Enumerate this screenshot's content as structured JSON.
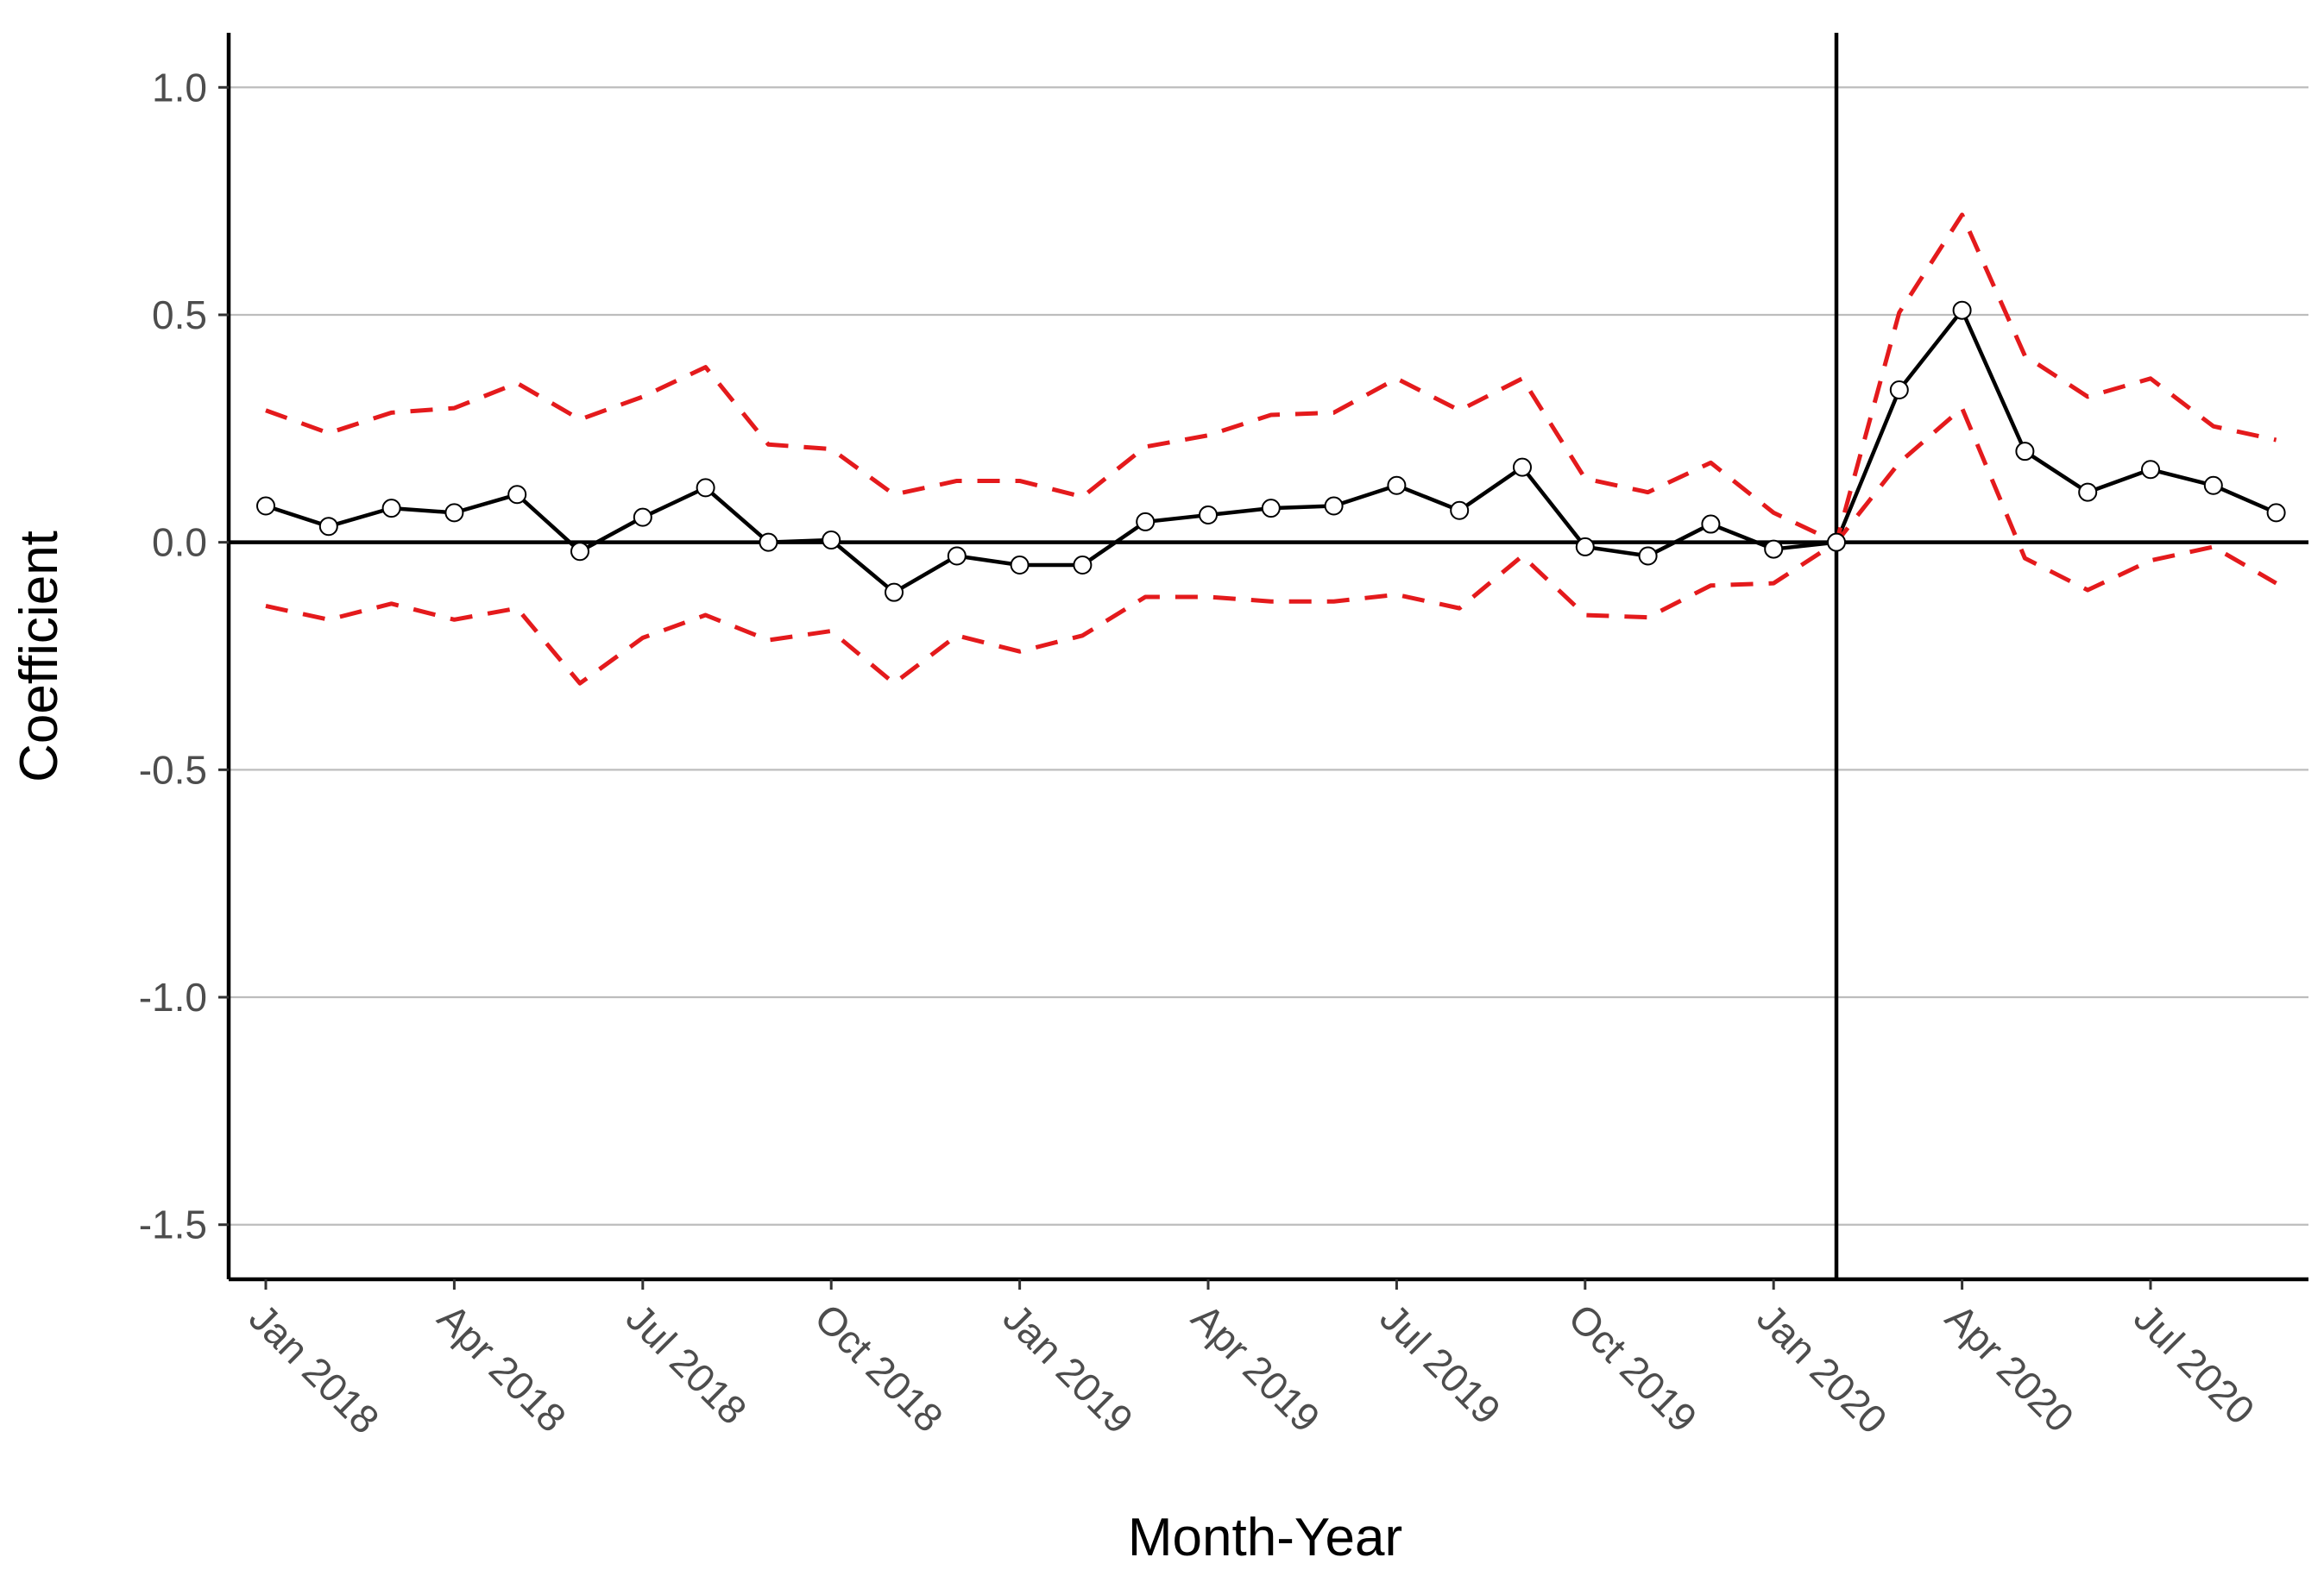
{
  "chart_data": {
    "type": "line",
    "title": "",
    "xlabel": "Month-Year",
    "ylabel": "Coefficient",
    "x": [
      "2018-01",
      "2018-02",
      "2018-03",
      "2018-04",
      "2018-05",
      "2018-06",
      "2018-07",
      "2018-08",
      "2018-09",
      "2018-10",
      "2018-11",
      "2018-12",
      "2019-01",
      "2019-02",
      "2019-03",
      "2019-04",
      "2019-05",
      "2019-06",
      "2019-07",
      "2019-08",
      "2019-09",
      "2019-10",
      "2019-11",
      "2019-12",
      "2020-01",
      "2020-02",
      "2020-03",
      "2020-04",
      "2020-05",
      "2020-06",
      "2020-07",
      "2020-08",
      "2020-09"
    ],
    "series": [
      {
        "role": "estimate",
        "color": "#000000",
        "markers": "open-circle",
        "values": [
          0.08,
          0.035,
          0.075,
          0.065,
          0.105,
          -0.02,
          0.055,
          0.12,
          0.0,
          0.005,
          -0.11,
          -0.03,
          -0.05,
          -0.05,
          0.045,
          0.06,
          0.075,
          0.08,
          0.125,
          0.07,
          0.165,
          -0.01,
          -0.03,
          0.04,
          -0.015,
          0.0,
          0.335,
          0.51,
          0.2,
          0.11,
          0.16,
          0.125,
          0.065
        ]
      },
      {
        "role": "upper-bound",
        "color": "#e41a1c",
        "dashed": true,
        "values": [
          0.29,
          0.24,
          0.285,
          0.295,
          0.35,
          0.27,
          0.32,
          0.385,
          0.215,
          0.205,
          0.105,
          0.135,
          0.135,
          0.1,
          0.21,
          0.235,
          0.28,
          0.285,
          0.36,
          0.29,
          0.36,
          0.14,
          0.11,
          0.175,
          0.065,
          0.0,
          0.505,
          0.72,
          0.41,
          0.32,
          0.36,
          0.255,
          0.225
        ]
      },
      {
        "role": "lower-bound",
        "color": "#e41a1c",
        "dashed": true,
        "values": [
          -0.14,
          -0.17,
          -0.135,
          -0.17,
          -0.145,
          -0.31,
          -0.21,
          -0.16,
          -0.215,
          -0.195,
          -0.31,
          -0.205,
          -0.24,
          -0.205,
          -0.12,
          -0.12,
          -0.13,
          -0.13,
          -0.115,
          -0.145,
          -0.03,
          -0.16,
          -0.165,
          -0.095,
          -0.09,
          0.0,
          0.175,
          0.295,
          -0.035,
          -0.105,
          -0.04,
          -0.01,
          -0.09
        ]
      }
    ],
    "ylim": [
      -1.62,
      1.12
    ],
    "yticks": [
      1.0,
      0.5,
      0.0,
      -0.5,
      -1.0,
      -1.5
    ],
    "ytick_labels": [
      "1.0",
      "0.5",
      "0.0",
      "-0.5",
      "-1.0",
      "-1.5"
    ],
    "xticks": [
      "2018-01",
      "2018-04",
      "2018-07",
      "2018-10",
      "2019-01",
      "2019-04",
      "2019-07",
      "2019-10",
      "2020-01",
      "2020-04",
      "2020-07"
    ],
    "xtick_labels": [
      "Jan 2018",
      "Apr 2018",
      "Jul 2018",
      "Oct 2018",
      "Jan 2019",
      "Apr 2019",
      "Jul 2019",
      "Oct 2019",
      "Jan 2020",
      "Apr 2020",
      "Jul 2020"
    ],
    "reference_hline": 0.0,
    "reference_vline": "2020-02",
    "grid": "horizontal-major",
    "legend": "none"
  }
}
